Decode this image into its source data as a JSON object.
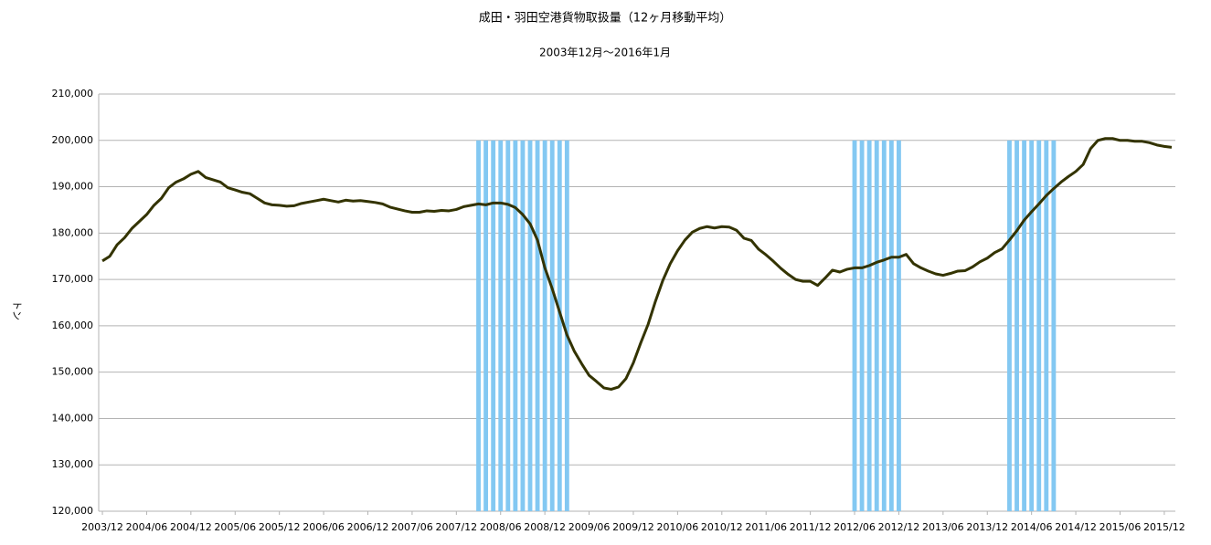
{
  "chart_data": {
    "type": "line",
    "title": "成田・羽田空港貨物取扱量（12ヶ月移動平均）",
    "subtitle": "2003年12月～2016年1月",
    "y_label": "トン",
    "categories": [
      "2003/12",
      null,
      null,
      null,
      null,
      null,
      "2004/06",
      null,
      null,
      null,
      null,
      null,
      "2004/12",
      null,
      null,
      null,
      null,
      null,
      "2005/06",
      null,
      null,
      null,
      null,
      null,
      "2005/12",
      null,
      null,
      null,
      null,
      null,
      "2006/06",
      null,
      null,
      null,
      null,
      null,
      "2006/12",
      null,
      null,
      null,
      null,
      null,
      "2007/06",
      null,
      null,
      null,
      null,
      null,
      "2007/12",
      null,
      null,
      null,
      null,
      null,
      "2008/06",
      null,
      null,
      null,
      null,
      null,
      "2008/12",
      null,
      null,
      null,
      null,
      null,
      "2009/06",
      null,
      null,
      null,
      null,
      null,
      "2009/12",
      null,
      null,
      null,
      null,
      null,
      "2010/06",
      null,
      null,
      null,
      null,
      null,
      "2010/12",
      null,
      null,
      null,
      null,
      null,
      "2011/06",
      null,
      null,
      null,
      null,
      null,
      "2011/12",
      null,
      null,
      null,
      null,
      null,
      "2012/06",
      null,
      null,
      null,
      null,
      null,
      "2012/12",
      null,
      null,
      null,
      null,
      null,
      "2013/06",
      null,
      null,
      null,
      null,
      null,
      "2013/12",
      null,
      null,
      null,
      null,
      null,
      "2014/06",
      null,
      null,
      null,
      null,
      null,
      "2014/12",
      null,
      null,
      null,
      null,
      null,
      "2015/06",
      null,
      null,
      null,
      null,
      null,
      "2015/12",
      null
    ],
    "series": [
      {
        "type": "bar",
        "color": "#83c8f2",
        "values": [
          null,
          null,
          null,
          null,
          null,
          null,
          null,
          null,
          null,
          null,
          null,
          null,
          null,
          null,
          null,
          null,
          null,
          null,
          null,
          null,
          null,
          null,
          null,
          null,
          null,
          null,
          null,
          null,
          null,
          null,
          null,
          null,
          null,
          null,
          null,
          null,
          null,
          null,
          null,
          null,
          null,
          null,
          null,
          null,
          null,
          null,
          null,
          null,
          null,
          null,
          null,
          200000,
          200000,
          200000,
          200000,
          200000,
          200000,
          200000,
          200000,
          200000,
          200000,
          200000,
          200000,
          200000,
          null,
          null,
          null,
          null,
          null,
          null,
          null,
          null,
          null,
          null,
          null,
          null,
          null,
          null,
          null,
          null,
          null,
          null,
          null,
          null,
          null,
          null,
          null,
          null,
          null,
          null,
          null,
          null,
          null,
          null,
          null,
          null,
          null,
          null,
          null,
          null,
          null,
          null,
          200000,
          200000,
          200000,
          200000,
          200000,
          200000,
          200000,
          null,
          null,
          null,
          null,
          null,
          null,
          null,
          null,
          null,
          null,
          null,
          null,
          null,
          null,
          200000,
          200000,
          200000,
          200000,
          200000,
          200000,
          200000,
          null,
          null,
          null,
          null,
          null,
          null,
          null,
          null,
          null,
          null,
          null,
          null,
          null,
          null,
          null,
          null
        ]
      },
      {
        "type": "line",
        "color": "#333300",
        "values": [
          174000,
          175000,
          177500,
          179000,
          181000,
          182500,
          184000,
          186000,
          187500,
          189800,
          191000,
          191700,
          192700,
          193300,
          192000,
          191500,
          191000,
          189800,
          189300,
          188800,
          188500,
          187500,
          186500,
          186100,
          186000,
          185800,
          185900,
          186400,
          186700,
          187000,
          187300,
          187000,
          186700,
          187100,
          186900,
          187000,
          186800,
          186600,
          186300,
          185600,
          185200,
          184800,
          184500,
          184500,
          184800,
          184700,
          184900,
          184800,
          185100,
          185700,
          186000,
          186300,
          186100,
          186500,
          186500,
          186200,
          185500,
          184000,
          182000,
          178500,
          172500,
          168000,
          163000,
          158000,
          154500,
          151800,
          149300,
          148000,
          146600,
          146300,
          146800,
          148600,
          152000,
          156300,
          160300,
          165300,
          169800,
          173400,
          176200,
          178500,
          180200,
          181000,
          181400,
          181100,
          181400,
          181300,
          180600,
          178900,
          178400,
          176500,
          175300,
          173900,
          172400,
          171100,
          170000,
          169600,
          169600,
          168700,
          170300,
          172000,
          171600,
          172200,
          172500,
          172500,
          173000,
          173700,
          174200,
          174800,
          174800,
          175400,
          173400,
          172500,
          171800,
          171200,
          170900,
          171300,
          171800,
          171900,
          172700,
          173800,
          174600,
          175800,
          176600,
          178500,
          180500,
          182800,
          184600,
          186300,
          188100,
          189600,
          191000,
          192200,
          193300,
          194800,
          198200,
          200000,
          200400,
          200400,
          200000,
          200000,
          199800,
          199800,
          199500,
          199000,
          198700,
          198500
        ]
      }
    ],
    "ylim": [
      120000,
      210000
    ],
    "yticks": [
      {
        "value": 120000,
        "label": "120,000"
      },
      {
        "value": 130000,
        "label": "130,000"
      },
      {
        "value": 140000,
        "label": "140,000"
      },
      {
        "value": 150000,
        "label": "150,000"
      },
      {
        "value": 160000,
        "label": "160,000"
      },
      {
        "value": 170000,
        "label": "170,000"
      },
      {
        "value": 180000,
        "label": "180,000"
      },
      {
        "value": 190000,
        "label": "190,000"
      },
      {
        "value": 200000,
        "label": "200,000"
      },
      {
        "value": 210000,
        "label": "210,000"
      }
    ],
    "grid": true
  }
}
